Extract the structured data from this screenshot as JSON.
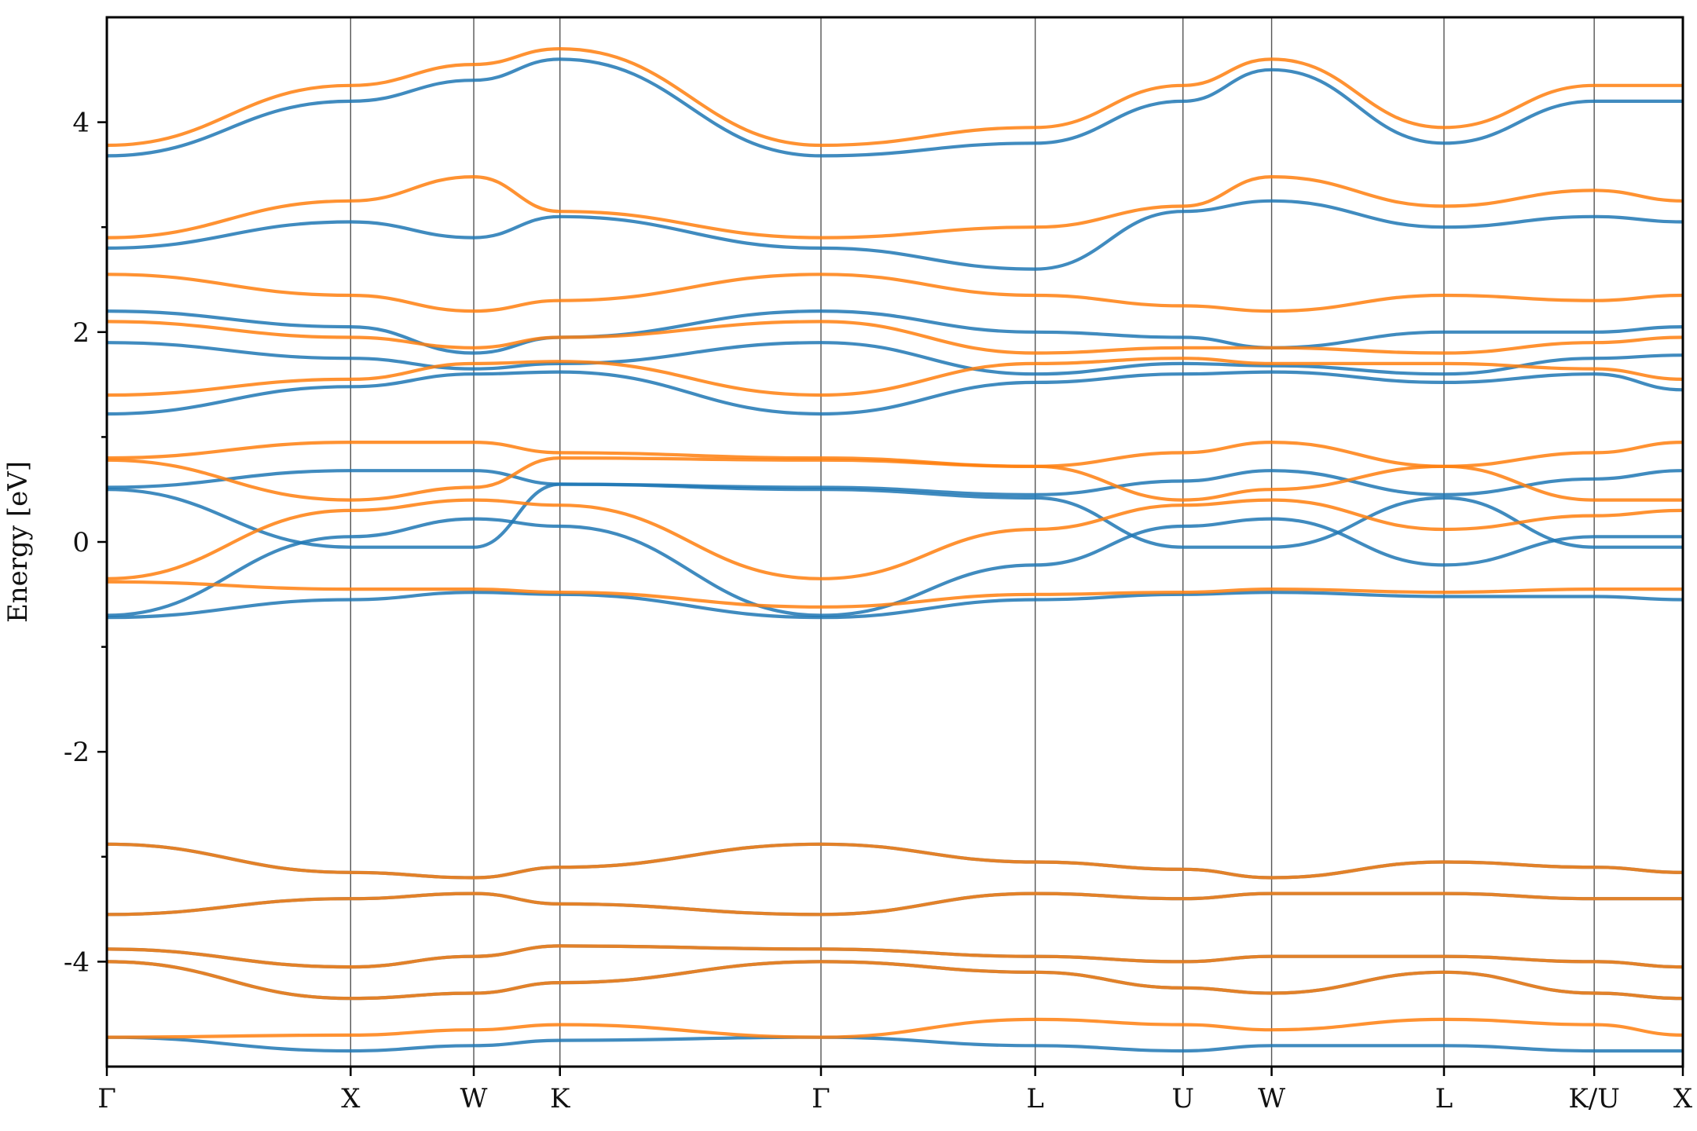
{
  "chart_data": {
    "type": "line",
    "title": "",
    "ylabel": "Energy [eV]",
    "xlabel": "",
    "ylim": [
      -5,
      5
    ],
    "yticks": [
      4,
      2,
      0,
      -2,
      -4
    ],
    "yticks_labeled": [
      "4",
      "2",
      "0",
      "-2",
      "-4"
    ],
    "grid": false,
    "legend": "none",
    "kpath_distance": [
      0,
      0.99,
      1.49,
      1.84,
      2.9,
      3.77,
      4.37,
      4.73,
      5.43,
      6.04,
      6.4
    ],
    "kpoints": [
      "Γ",
      "X",
      "W",
      "K",
      "Γ",
      "L",
      "U",
      "W",
      "L",
      "K/U",
      "X"
    ],
    "series": [
      {
        "color": "#1f77b4",
        "bands": [
          [
            -0.72,
            -0.55,
            -0.48,
            -0.5,
            -0.72,
            -0.55,
            -0.5,
            -0.48,
            -0.52,
            -0.52,
            -0.55
          ],
          [
            -0.7,
            0.05,
            0.22,
            0.15,
            -0.7,
            -0.22,
            0.15,
            0.22,
            -0.22,
            0.05,
            0.05
          ],
          [
            0.5,
            -0.05,
            -0.05,
            0.55,
            0.5,
            0.42,
            -0.05,
            -0.05,
            0.42,
            -0.05,
            -0.05
          ],
          [
            0.52,
            0.68,
            0.68,
            0.55,
            0.52,
            0.45,
            0.58,
            0.68,
            0.45,
            0.6,
            0.68
          ],
          [
            1.22,
            1.48,
            1.6,
            1.62,
            1.22,
            1.52,
            1.6,
            1.62,
            1.52,
            1.6,
            1.45
          ],
          [
            1.9,
            1.75,
            1.65,
            1.7,
            1.9,
            1.6,
            1.7,
            1.68,
            1.6,
            1.75,
            1.78
          ],
          [
            2.2,
            2.05,
            1.8,
            1.95,
            2.2,
            2.0,
            1.95,
            1.85,
            2.0,
            2.0,
            2.05
          ],
          [
            2.8,
            3.05,
            2.9,
            3.1,
            2.8,
            2.6,
            3.15,
            3.25,
            3.0,
            3.1,
            3.05
          ],
          [
            3.68,
            4.2,
            4.4,
            4.6,
            3.68,
            3.8,
            4.2,
            4.5,
            3.8,
            4.2,
            4.2
          ],
          [
            -2.88,
            -3.15,
            -3.2,
            -3.1,
            -2.88,
            -3.05,
            -3.12,
            -3.2,
            -3.05,
            -3.1,
            -3.15
          ],
          [
            -3.55,
            -3.4,
            -3.35,
            -3.45,
            -3.55,
            -3.35,
            -3.4,
            -3.35,
            -3.35,
            -3.4,
            -3.4
          ],
          [
            -3.88,
            -4.05,
            -3.95,
            -3.85,
            -3.88,
            -3.95,
            -4.0,
            -3.95,
            -3.95,
            -4.0,
            -4.05
          ],
          [
            -4.0,
            -4.35,
            -4.3,
            -4.2,
            -4.0,
            -4.1,
            -4.25,
            -4.3,
            -4.1,
            -4.3,
            -4.35
          ],
          [
            -4.72,
            -4.85,
            -4.8,
            -4.75,
            -4.72,
            -4.8,
            -4.85,
            -4.8,
            -4.8,
            -4.85,
            -4.85
          ]
        ]
      },
      {
        "color": "#ff7f0e",
        "bands": [
          [
            -0.38,
            -0.45,
            -0.45,
            -0.48,
            -0.62,
            -0.5,
            -0.48,
            -0.45,
            -0.48,
            -0.45,
            -0.45
          ],
          [
            -0.35,
            0.3,
            0.4,
            0.35,
            -0.35,
            0.12,
            0.35,
            0.4,
            0.12,
            0.25,
            0.3
          ],
          [
            0.78,
            0.4,
            0.52,
            0.8,
            0.78,
            0.72,
            0.4,
            0.5,
            0.72,
            0.4,
            0.4
          ],
          [
            0.8,
            0.95,
            0.95,
            0.85,
            0.8,
            0.72,
            0.85,
            0.95,
            0.72,
            0.85,
            0.95
          ],
          [
            1.4,
            1.55,
            1.7,
            1.72,
            1.4,
            1.7,
            1.75,
            1.7,
            1.7,
            1.65,
            1.55
          ],
          [
            2.1,
            1.95,
            1.85,
            1.95,
            2.1,
            1.8,
            1.85,
            1.85,
            1.8,
            1.9,
            1.95
          ],
          [
            2.55,
            2.35,
            2.2,
            2.3,
            2.55,
            2.35,
            2.25,
            2.2,
            2.35,
            2.3,
            2.35
          ],
          [
            2.9,
            3.25,
            3.48,
            3.15,
            2.9,
            3.0,
            3.2,
            3.48,
            3.2,
            3.35,
            3.25
          ],
          [
            3.78,
            4.35,
            4.55,
            4.7,
            3.78,
            3.95,
            4.35,
            4.6,
            3.95,
            4.35,
            4.35
          ],
          [
            -2.88,
            -3.15,
            -3.2,
            -3.1,
            -2.88,
            -3.05,
            -3.12,
            -3.2,
            -3.05,
            -3.1,
            -3.15
          ],
          [
            -3.55,
            -3.4,
            -3.35,
            -3.45,
            -3.55,
            -3.35,
            -3.4,
            -3.35,
            -3.35,
            -3.4,
            -3.4
          ],
          [
            -3.88,
            -4.05,
            -3.95,
            -3.85,
            -3.88,
            -3.95,
            -4.0,
            -3.95,
            -3.95,
            -4.0,
            -4.05
          ],
          [
            -4.0,
            -4.35,
            -4.3,
            -4.2,
            -4.0,
            -4.1,
            -4.25,
            -4.3,
            -4.1,
            -4.3,
            -4.35
          ],
          [
            -4.72,
            -4.7,
            -4.65,
            -4.6,
            -4.72,
            -4.55,
            -4.6,
            -4.65,
            -4.55,
            -4.6,
            -4.7
          ]
        ]
      }
    ]
  }
}
